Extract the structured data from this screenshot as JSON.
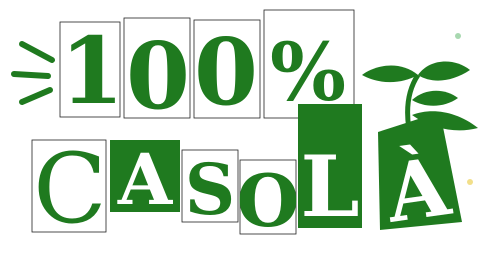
{
  "logo": {
    "top": [
      "1",
      "0",
      "0",
      "%"
    ],
    "bottom": [
      "C",
      "A",
      "S",
      "O",
      "L",
      "À"
    ]
  }
}
